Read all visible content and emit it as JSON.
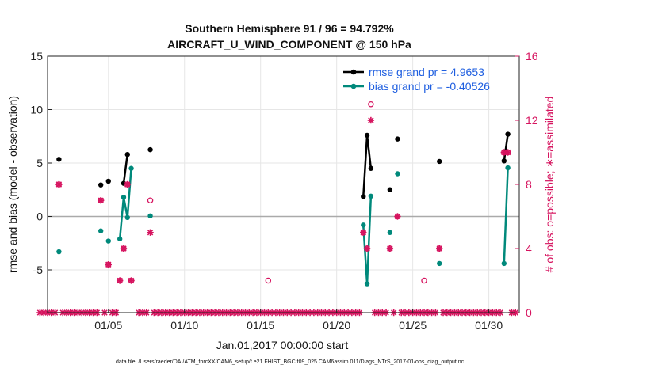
{
  "chart_data": {
    "type": "line",
    "title": "Southern Hemisphere 91 / 96 = 94.792%",
    "subtitle": "AIRCRAFT_U_WIND_COMPONENT @ 150 hPa",
    "xlabel": "Jan.01,2017 00:00:00 start",
    "ylabel": "rmse and bias (model - observation)",
    "ylabel_right": "# of obs: o=possible; ∗=assimilated",
    "footer": "data file: /Users/raeder/DAI/ATM_forcXX/CAM6_setup/f.e21.FHIST_BGC.f09_025.CAM6assim.011/Diags_NTrS_2017-01/obs_diag_output.nc",
    "xlim": [
      1,
      32
    ],
    "ylim": [
      -9,
      15
    ],
    "ylim_right": [
      0,
      16
    ],
    "yticks": [
      -5,
      0,
      5,
      10,
      15
    ],
    "yticks_right": [
      0,
      4,
      8,
      12,
      16
    ],
    "xticks": [
      {
        "day": 5,
        "label": "01/05"
      },
      {
        "day": 10,
        "label": "01/10"
      },
      {
        "day": 15,
        "label": "01/15"
      },
      {
        "day": 20,
        "label": "01/20"
      },
      {
        "day": 25,
        "label": "01/25"
      },
      {
        "day": 30,
        "label": "01/30"
      }
    ],
    "grid": true,
    "legend_position": "top-right",
    "series": [
      {
        "name": "rmse grand pr = 4.9653",
        "color": "#000000",
        "segments": [
          [
            [
              1.75,
              5.35
            ]
          ],
          [
            [
              4.5,
              2.95
            ]
          ],
          [
            [
              5.0,
              3.3
            ]
          ],
          [
            [
              6.0,
              3.1
            ],
            [
              6.25,
              5.8
            ]
          ],
          [
            [
              7.75,
              6.25
            ]
          ],
          [
            [
              21.75,
              1.85
            ],
            [
              22.0,
              7.6
            ],
            [
              22.25,
              4.5
            ]
          ],
          [
            [
              23.5,
              2.5
            ]
          ],
          [
            [
              24.0,
              7.25
            ]
          ],
          [
            [
              26.75,
              5.15
            ]
          ],
          [
            [
              31.0,
              5.2
            ],
            [
              31.25,
              7.7
            ]
          ]
        ]
      },
      {
        "name": "bias grand pr = -0.40526",
        "color": "#00897b",
        "segments": [
          [
            [
              1.75,
              -3.3
            ]
          ],
          [
            [
              4.5,
              -1.35
            ]
          ],
          [
            [
              5.0,
              -2.3
            ]
          ],
          [
            [
              5.75,
              -2.1
            ],
            [
              6.0,
              1.8
            ],
            [
              6.25,
              -0.1
            ],
            [
              6.5,
              4.5
            ]
          ],
          [
            [
              7.75,
              0.05
            ]
          ],
          [
            [
              21.75,
              -0.8
            ],
            [
              22.0,
              -6.3
            ],
            [
              22.25,
              1.9
            ]
          ],
          [
            [
              23.5,
              -1.5
            ]
          ],
          [
            [
              24.0,
              4.0
            ]
          ],
          [
            [
              26.75,
              -4.4
            ]
          ],
          [
            [
              31.0,
              -4.4
            ],
            [
              31.25,
              4.55
            ]
          ]
        ]
      }
    ],
    "obs_possible": {
      "marker": "o",
      "color": "#d6145f",
      "points": [
        [
          1.75,
          8
        ],
        [
          4.5,
          7
        ],
        [
          5.0,
          3
        ],
        [
          5.75,
          2
        ],
        [
          6.0,
          4
        ],
        [
          6.25,
          8
        ],
        [
          6.5,
          2
        ],
        [
          7.75,
          7
        ],
        [
          15.5,
          2
        ],
        [
          21.75,
          5
        ],
        [
          22.0,
          4
        ],
        [
          22.25,
          13
        ],
        [
          23.5,
          4
        ],
        [
          24.0,
          6
        ],
        [
          25.75,
          2
        ],
        [
          26.75,
          4
        ],
        [
          31.0,
          10
        ],
        [
          31.25,
          10
        ]
      ]
    },
    "obs_assimilated": {
      "marker": "*",
      "color": "#d6145f",
      "points": [
        [
          1.75,
          8
        ],
        [
          4.5,
          7
        ],
        [
          5.0,
          3
        ],
        [
          5.75,
          2
        ],
        [
          6.0,
          4
        ],
        [
          6.25,
          8
        ],
        [
          6.5,
          2
        ],
        [
          7.75,
          5
        ],
        [
          21.75,
          5
        ],
        [
          22.0,
          4
        ],
        [
          22.25,
          12
        ],
        [
          23.5,
          4
        ],
        [
          24.0,
          6
        ],
        [
          26.75,
          4
        ],
        [
          31.0,
          10
        ],
        [
          31.25,
          10
        ]
      ],
      "zero_points": [
        0.5,
        0.75,
        1.0,
        1.25,
        1.5,
        2.0,
        2.25,
        2.5,
        2.75,
        3.0,
        3.25,
        3.5,
        3.75,
        4.0,
        4.25,
        4.75,
        5.25,
        5.5,
        7.0,
        7.25,
        7.5,
        8.0,
        8.25,
        8.5,
        8.75,
        9.0,
        9.25,
        9.5,
        9.75,
        10.0,
        10.25,
        10.5,
        10.75,
        11.0,
        11.25,
        11.5,
        11.75,
        12.0,
        12.25,
        12.5,
        12.75,
        13.0,
        13.25,
        13.5,
        13.75,
        14.0,
        14.25,
        14.5,
        14.75,
        15.0,
        15.25,
        15.5,
        15.75,
        16.0,
        16.25,
        16.5,
        16.75,
        17.0,
        17.25,
        17.5,
        17.75,
        18.0,
        18.25,
        18.5,
        18.75,
        19.0,
        19.25,
        19.5,
        19.75,
        20.0,
        20.25,
        20.5,
        20.75,
        21.0,
        21.25,
        21.5,
        22.5,
        22.75,
        23.0,
        23.25,
        23.75,
        24.25,
        24.5,
        24.75,
        25.0,
        25.25,
        25.5,
        25.75,
        26.0,
        26.25,
        26.5,
        27.0,
        27.25,
        27.5,
        27.75,
        28.0,
        28.25,
        28.5,
        28.75,
        29.0,
        29.25,
        29.5,
        29.75,
        30.0,
        30.25,
        30.5,
        30.75,
        31.5,
        31.75
      ]
    }
  }
}
